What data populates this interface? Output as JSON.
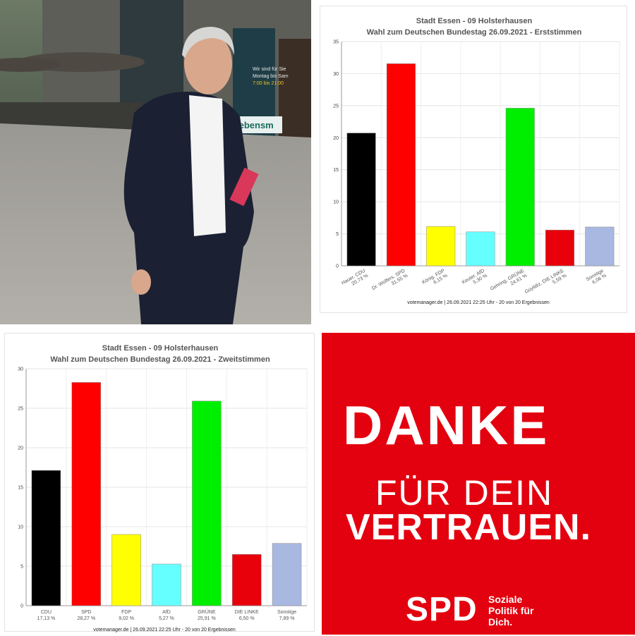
{
  "photo": {
    "sign_lines": [
      "Wir sind für Sie",
      "Montag bis Sam",
      "7:00 bis 21:00"
    ],
    "sign_word": "lebensm"
  },
  "charts": [
    {
      "type": "bar",
      "title": "Stadt Essen - 09 Holsterhausen",
      "subtitle": "Wahl zum Deutschen Bundestag 26.09.2021  - Erststimmen",
      "categories": [
        "Hauer, CDU",
        "Dr. Wolfers, SPD",
        "König, FDP",
        "Keuter, AfD",
        "Gehring, GRÜNE",
        "Güyildiz, DIE LINKE",
        "Sonstige"
      ],
      "labels": [
        "20,73 %",
        "31,55 %",
        "6,15 %",
        "5,30 %",
        "24,61 %",
        "5,59 %",
        "6,06 %"
      ],
      "values": [
        20.73,
        31.55,
        6.15,
        5.3,
        24.61,
        5.59,
        6.06
      ],
      "colors": [
        "#000000",
        "#ff0000",
        "#ffff00",
        "#66ffff",
        "#00ee00",
        "#e8000b",
        "#a8b8e0"
      ],
      "ylim": [
        0,
        35
      ],
      "yticks": [
        0,
        5,
        10,
        15,
        20,
        25,
        30,
        35
      ],
      "footer": "votemanager.de | 26.09.2021 22:25 Uhr - 20 von 20 Ergebnissen",
      "grid": true
    },
    {
      "type": "bar",
      "title": "Stadt Essen - 09 Holsterhausen",
      "subtitle": "Wahl zum Deutschen Bundestag 26.09.2021  - Zweitstimmen",
      "categories": [
        "CDU",
        "SPD",
        "FDP",
        "AfD",
        "GRÜNE",
        "DIE LINKE",
        "Sonstige"
      ],
      "labels": [
        "17,13 %",
        "28,27 %",
        "9,02 %",
        "5,27 %",
        "25,91 %",
        "6,50 %",
        "7,89 %"
      ],
      "values": [
        17.13,
        28.27,
        9.02,
        5.27,
        25.91,
        6.5,
        7.89
      ],
      "colors": [
        "#000000",
        "#ff0000",
        "#ffff00",
        "#66ffff",
        "#00ee00",
        "#e8000b",
        "#a8b8e0"
      ],
      "ylim": [
        0,
        30
      ],
      "yticks": [
        0,
        5,
        10,
        15,
        20,
        25,
        30
      ],
      "footer": "votemanager.de | 26.09.2021 22:25 Uhr - 20 von 20 Ergebnissen",
      "grid": true
    }
  ],
  "chart_data": [
    {
      "type": "bar",
      "title": "Stadt Essen - 09 Holsterhausen",
      "subtitle": "Wahl zum Deutschen Bundestag 26.09.2021  - Erststimmen",
      "categories": [
        "Hauer, CDU",
        "Dr. Wolfers, SPD",
        "König, FDP",
        "Keuter, AfD",
        "Gehring, GRÜNE",
        "Güyildiz, DIE LINKE",
        "Sonstige"
      ],
      "values": [
        20.73,
        31.55,
        6.15,
        5.3,
        24.61,
        5.59,
        6.06
      ],
      "ylim": [
        0,
        35
      ]
    },
    {
      "type": "bar",
      "title": "Stadt Essen - 09 Holsterhausen",
      "subtitle": "Wahl zum Deutschen Bundestag 26.09.2021  - Zweitstimmen",
      "categories": [
        "CDU",
        "SPD",
        "FDP",
        "AfD",
        "GRÜNE",
        "DIE LINKE",
        "Sonstige"
      ],
      "values": [
        17.13,
        28.27,
        9.02,
        5.27,
        25.91,
        6.5,
        7.89
      ],
      "ylim": [
        0,
        30
      ]
    }
  ],
  "poster": {
    "line1": "DANKE",
    "line2": "FÜR DEIN",
    "line3": "VERTRAUEN.",
    "logo": "SPD",
    "slogan": [
      "Soziale",
      "Politik für",
      "Dich."
    ],
    "bg_color": "#e3000f"
  }
}
